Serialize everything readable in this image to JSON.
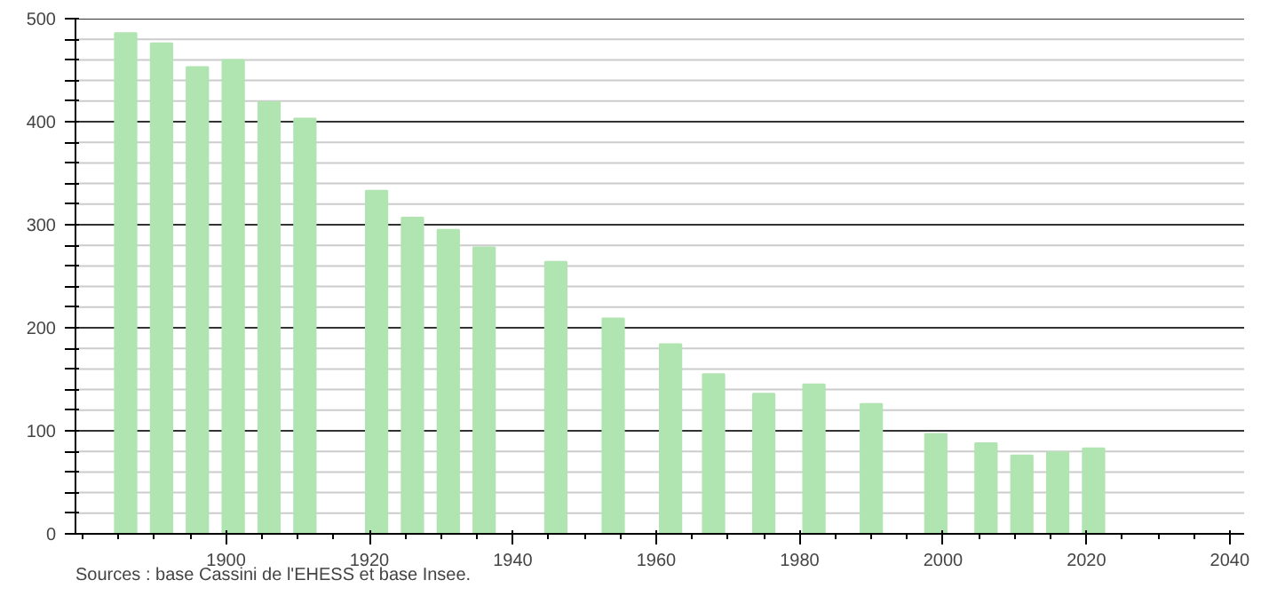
{
  "chart_data": {
    "type": "bar",
    "x": [
      1886,
      1891,
      1896,
      1901,
      1906,
      1911,
      1921,
      1926,
      1931,
      1936,
      1946,
      1954,
      1962,
      1968,
      1975,
      1982,
      1990,
      1999,
      2006,
      2011,
      2016,
      2021
    ],
    "values": [
      486,
      476,
      453,
      460,
      419,
      403,
      333,
      307,
      295,
      278,
      264,
      209,
      184,
      155,
      136,
      145,
      126,
      97,
      88,
      76,
      79,
      83
    ],
    "color": "#b0e4b0",
    "xlim": [
      1879,
      2042
    ],
    "xticks": [
      1900,
      1920,
      1940,
      1960,
      1980,
      2000,
      2020,
      2040
    ],
    "ylim": [
      0,
      500
    ],
    "yticks": [
      0,
      {
        "value": 20,
        "label": null
      },
      {
        "value": 40,
        "label": null
      },
      {
        "value": 60,
        "label": null
      },
      {
        "value": 80,
        "label": null
      },
      100,
      {
        "value": 120,
        "label": null
      },
      {
        "value": 140,
        "label": null
      },
      {
        "value": 160,
        "label": null
      },
      {
        "value": 180,
        "label": null
      },
      200,
      {
        "value": 220,
        "label": null
      },
      {
        "value": 240,
        "label": null
      },
      {
        "value": 260,
        "label": null
      },
      {
        "value": 280,
        "label": null
      },
      300,
      {
        "value": 320,
        "label": null
      },
      {
        "value": 340,
        "label": null
      },
      {
        "value": 360,
        "label": null
      },
      {
        "value": 380,
        "label": null
      },
      400,
      {
        "value": 420,
        "label": null
      },
      {
        "value": 440,
        "label": null
      },
      {
        "value": 460,
        "label": null
      },
      {
        "value": 480,
        "label": null
      },
      500
    ],
    "grid": "y",
    "annotations": [
      "Sources : base Cassini de l'EHESS et base Insee."
    ]
  }
}
